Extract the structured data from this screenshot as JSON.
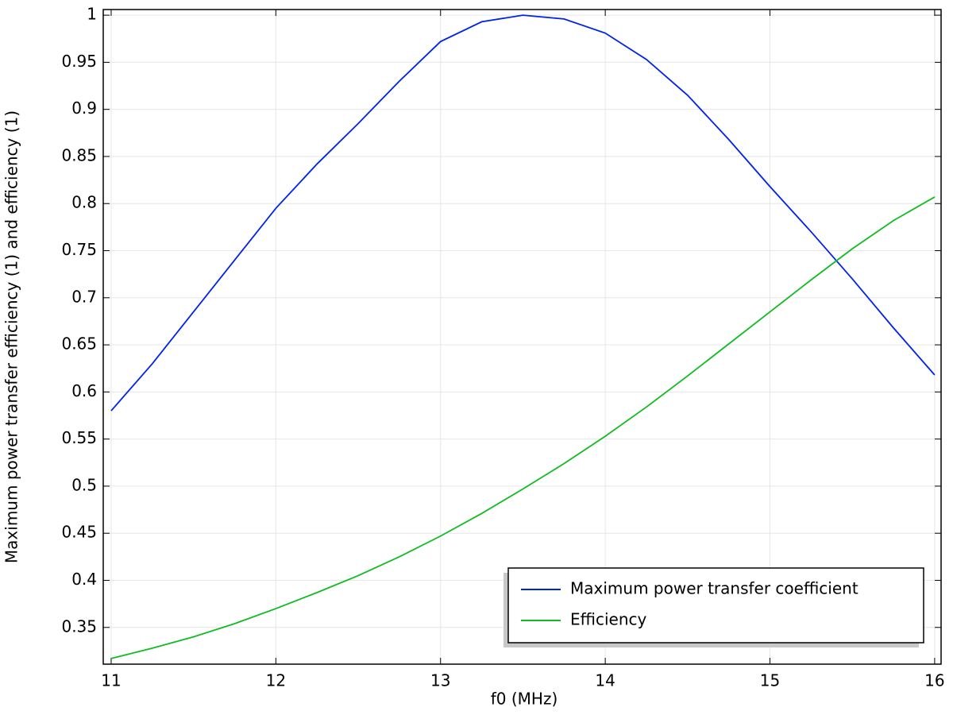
{
  "chart_data": {
    "type": "line",
    "xlabel": "f0 (MHz)",
    "ylabel": "Maximum power transfer efficiency (1) and efficiency (1)",
    "x": [
      11,
      11.25,
      11.5,
      11.75,
      12,
      12.25,
      12.5,
      12.75,
      13,
      13.25,
      13.5,
      13.75,
      14,
      14.25,
      14.5,
      14.75,
      15,
      15.25,
      15.5,
      15.75,
      16
    ],
    "series": [
      {
        "name": "Maximum power transfer coefficient",
        "color": "#0022ee",
        "values": [
          0.58,
          0.63,
          0.685,
          0.74,
          0.795,
          0.842,
          0.885,
          0.93,
          0.972,
          0.993,
          1.0,
          0.996,
          0.981,
          0.953,
          0.915,
          0.868,
          0.818,
          0.77,
          0.72,
          0.668,
          0.618
        ]
      },
      {
        "name": "Efficiency",
        "color": "#11bb22",
        "values": [
          0.317,
          0.328,
          0.34,
          0.354,
          0.37,
          0.387,
          0.405,
          0.425,
          0.447,
          0.471,
          0.497,
          0.524,
          0.553,
          0.584,
          0.617,
          0.651,
          0.685,
          0.719,
          0.752,
          0.782,
          0.807
        ]
      }
    ],
    "xlim": [
      10.952,
      16.039
    ],
    "ylim": [
      0.311,
      1.006
    ],
    "xticks": [
      11,
      12,
      13,
      14,
      15,
      16
    ],
    "yticks": [
      0.35,
      0.4,
      0.45,
      0.5,
      0.55,
      0.6,
      0.65,
      0.7,
      0.75,
      0.8,
      0.85,
      0.9,
      0.95,
      1
    ],
    "grid": true,
    "legend": "lower-right"
  }
}
